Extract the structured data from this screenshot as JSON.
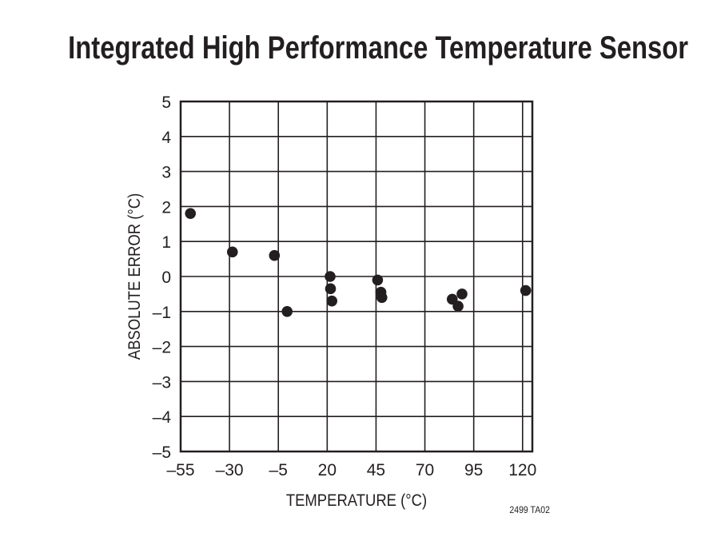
{
  "chart_data": {
    "type": "scatter",
    "title": "Integrated High Performance Temperature Sensor",
    "xlabel": "TEMPERATURE (°C)",
    "ylabel": "ABSOLUTE ERROR (°C)",
    "xlim": [
      -55,
      125
    ],
    "ylim": [
      -5,
      5
    ],
    "xticks": [
      -55,
      -30,
      -5,
      20,
      45,
      70,
      95,
      120
    ],
    "xtick_labels": [
      "–55",
      "–30",
      "–5",
      "20",
      "45",
      "70",
      "95",
      "120"
    ],
    "yticks": [
      5,
      4,
      3,
      2,
      1,
      0,
      -1,
      -2,
      -3,
      -4,
      -5
    ],
    "ytick_labels": [
      "5",
      "4",
      "3",
      "2",
      "1",
      "0",
      "–1",
      "–2",
      "–3",
      "–4",
      "–5"
    ],
    "grid": true,
    "legend": "none",
    "marker_color": "#231f20",
    "points": [
      {
        "x": -50,
        "y": 1.8
      },
      {
        "x": -28.5,
        "y": 0.7
      },
      {
        "x": -7,
        "y": 0.6
      },
      {
        "x": -0.5,
        "y": -1.0
      },
      {
        "x": 21.5,
        "y": 0.0
      },
      {
        "x": 21.7,
        "y": -0.35
      },
      {
        "x": 22.4,
        "y": -0.7
      },
      {
        "x": 45.8,
        "y": -0.1
      },
      {
        "x": 47.5,
        "y": -0.45
      },
      {
        "x": 48,
        "y": -0.6
      },
      {
        "x": 84,
        "y": -0.65
      },
      {
        "x": 87,
        "y": -0.85
      },
      {
        "x": 89,
        "y": -0.5
      },
      {
        "x": 121.6,
        "y": -0.4
      }
    ],
    "annotation": "2499 TA02"
  }
}
